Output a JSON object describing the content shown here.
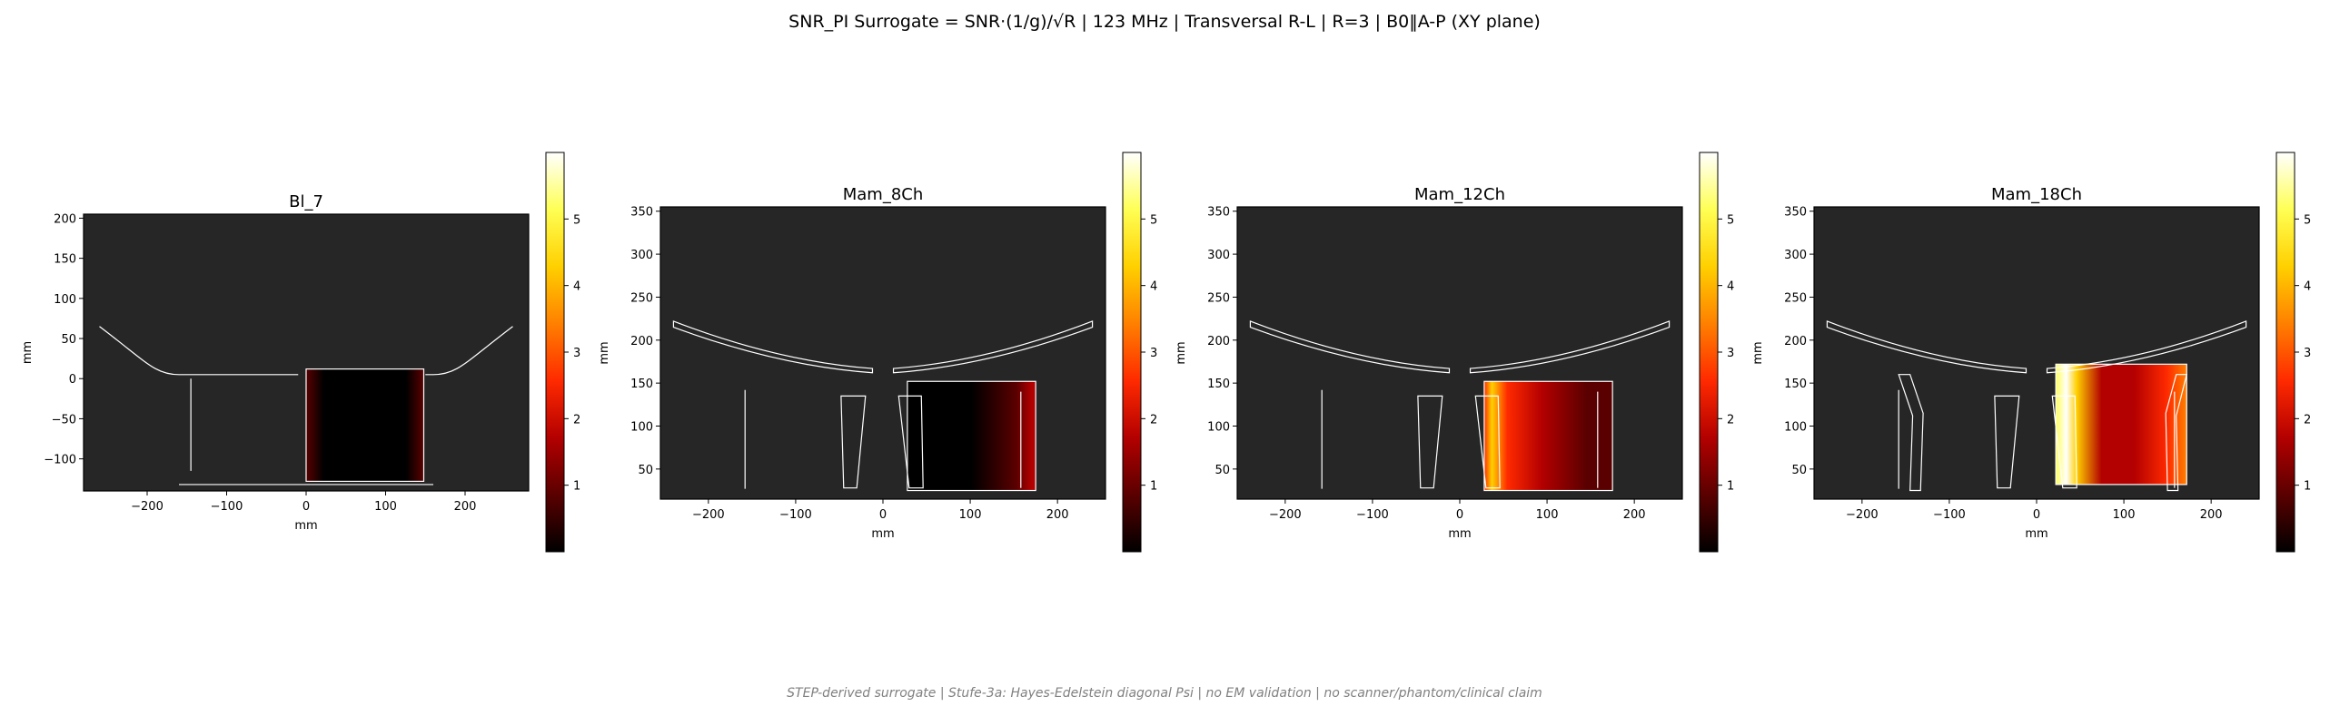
{
  "figure": {
    "title": "SNR_PI Surrogate = SNR·(1/g)/√R | 123 MHz | Transversal R-L | R=3 | B0‖A-P (XY plane)",
    "footer": "STEP-derived surrogate | Stufe-3a: Hayes-Edelstein diagonal Psi | no EM validation | no scanner/phantom/clinical claim"
  },
  "colors": {
    "panel_background": "#262626",
    "outline": "#ffffff",
    "colormap": [
      "#000000",
      "#5a0000",
      "#b30000",
      "#ff2a00",
      "#ff8000",
      "#ffd000",
      "#ffff55",
      "#ffffff"
    ]
  },
  "chart_data": [
    {
      "type": "heatmap",
      "title": "Bl_7",
      "xlabel": "mm",
      "ylabel": "mm",
      "xlim": [
        -280,
        280
      ],
      "ylim": [
        -140,
        205
      ],
      "xticks": [
        "−200",
        "−100",
        "0",
        "100",
        "200"
      ],
      "xtick_values": [
        -200,
        -100,
        0,
        100,
        200
      ],
      "yticks": [
        "200",
        "150",
        "100",
        "50",
        "0",
        "−50",
        "−100"
      ],
      "ytick_values": [
        200,
        150,
        100,
        50,
        0,
        -50,
        -100
      ],
      "colorbar": {
        "min": 0,
        "max": 6,
        "ticks": [
          "5",
          "4",
          "3",
          "2",
          "1"
        ],
        "tick_values": [
          5,
          4,
          3,
          2,
          1
        ]
      },
      "heat_region": {
        "x": [
          0,
          148
        ],
        "y": [
          -128,
          12
        ],
        "peak_snr": 0.8,
        "profile": "bowl"
      },
      "grid": false
    },
    {
      "type": "heatmap",
      "title": "Mam_8Ch",
      "xlabel": "mm",
      "ylabel": "mm",
      "xlim": [
        -255,
        255
      ],
      "ylim": [
        15,
        355
      ],
      "xticks": [
        "−200",
        "−100",
        "0",
        "100",
        "200"
      ],
      "xtick_values": [
        -200,
        -100,
        0,
        100,
        200
      ],
      "yticks": [
        "350",
        "300",
        "250",
        "200",
        "150",
        "100",
        "50"
      ],
      "ytick_values": [
        350,
        300,
        250,
        200,
        150,
        100,
        50
      ],
      "colorbar": {
        "min": 0,
        "max": 6,
        "ticks": [
          "5",
          "4",
          "3",
          "2",
          "1"
        ],
        "tick_values": [
          5,
          4,
          3,
          2,
          1
        ]
      },
      "heat_region": {
        "x": [
          28,
          175
        ],
        "y": [
          25,
          152
        ],
        "peak_snr": 1.9,
        "profile": "right"
      },
      "grid": false
    },
    {
      "type": "heatmap",
      "title": "Mam_12Ch",
      "xlabel": "mm",
      "ylabel": "mm",
      "xlim": [
        -255,
        255
      ],
      "ylim": [
        15,
        355
      ],
      "xticks": [
        "−200",
        "−100",
        "0",
        "100",
        "200"
      ],
      "xtick_values": [
        -200,
        -100,
        0,
        100,
        200
      ],
      "yticks": [
        "350",
        "300",
        "250",
        "200",
        "150",
        "100",
        "50"
      ],
      "ytick_values": [
        350,
        300,
        250,
        200,
        150,
        100,
        50
      ],
      "colorbar": {
        "min": 0,
        "max": 6,
        "ticks": [
          "5",
          "4",
          "3",
          "2",
          "1"
        ],
        "tick_values": [
          5,
          4,
          3,
          2,
          1
        ]
      },
      "heat_region": {
        "x": [
          28,
          175
        ],
        "y": [
          25,
          152
        ],
        "peak_snr": 4.2,
        "profile": "left"
      },
      "grid": false
    },
    {
      "type": "heatmap",
      "title": "Mam_18Ch",
      "xlabel": "mm",
      "ylabel": "mm",
      "xlim": [
        -255,
        255
      ],
      "ylim": [
        15,
        355
      ],
      "xticks": [
        "−200",
        "−100",
        "0",
        "100",
        "200"
      ],
      "xtick_values": [
        -200,
        -100,
        0,
        100,
        200
      ],
      "yticks": [
        "350",
        "300",
        "250",
        "200",
        "150",
        "100",
        "50"
      ],
      "ytick_values": [
        350,
        300,
        250,
        200,
        150,
        100,
        50
      ],
      "colorbar": {
        "min": 0,
        "max": 6,
        "ticks": [
          "5",
          "4",
          "3",
          "2",
          "1"
        ],
        "tick_values": [
          5,
          4,
          3,
          2,
          1
        ]
      },
      "heat_region": {
        "x": [
          22,
          172
        ],
        "y": [
          32,
          172
        ],
        "peak_snr": 5.9,
        "profile": "strong-left"
      },
      "grid": false
    }
  ]
}
